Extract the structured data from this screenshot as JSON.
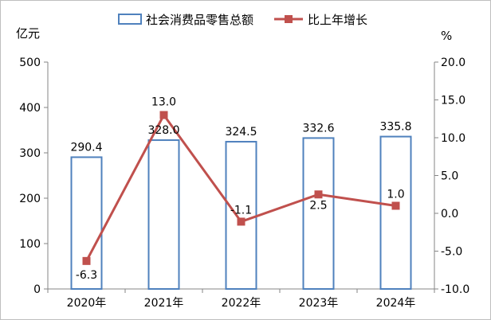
{
  "chart_data": {
    "type": "bar+line",
    "categories": [
      "2020年",
      "2021年",
      "2022年",
      "2023年",
      "2024年"
    ],
    "series": [
      {
        "name": "社会消费品零售总额",
        "type": "bar",
        "axis": "left",
        "values": [
          290.4,
          328.0,
          324.5,
          332.6,
          335.8
        ],
        "labels": [
          "290.4",
          "328.0",
          "324.5",
          "332.6",
          "335.8"
        ]
      },
      {
        "name": "比上年增长",
        "type": "line",
        "axis": "right",
        "values": [
          -6.3,
          13.0,
          -1.1,
          2.5,
          1.0
        ],
        "labels": [
          "-6.3",
          "13.0",
          "-1.1",
          "2.5",
          "1.0"
        ]
      }
    ],
    "left_axis": {
      "unit": "亿元",
      "range": [
        0,
        500
      ],
      "ticks": [
        0,
        100,
        200,
        300,
        400,
        500
      ],
      "tick_labels": [
        "0",
        "100",
        "200",
        "300",
        "400",
        "500"
      ]
    },
    "right_axis": {
      "unit": "%",
      "range": [
        -10,
        20
      ],
      "ticks": [
        -10,
        -5,
        0,
        5,
        10,
        15,
        20
      ],
      "tick_labels": [
        "-10.0",
        "-5.0",
        "0.0",
        "5.0",
        "10.0",
        "15.0",
        "20.0"
      ]
    },
    "legend": "top",
    "grid": false,
    "colors": {
      "bar_stroke": "#4f81bd",
      "bar_fill": "#ffffff",
      "line": "#c0504d",
      "axis": "#868686"
    }
  }
}
